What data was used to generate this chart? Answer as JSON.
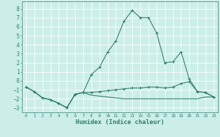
{
  "xlabel": "Humidex (Indice chaleur)",
  "background_color": "#cceee8",
  "grid_color": "#ffffff",
  "line_color": "#2e7d6e",
  "xlim": [
    -0.5,
    23.5
  ],
  "ylim": [
    -3.5,
    8.8
  ],
  "yticks": [
    -3,
    -2,
    -1,
    0,
    1,
    2,
    3,
    4,
    5,
    6,
    7,
    8
  ],
  "xticks": [
    0,
    1,
    2,
    3,
    4,
    5,
    6,
    7,
    8,
    9,
    10,
    11,
    12,
    13,
    14,
    15,
    16,
    17,
    18,
    19,
    20,
    21,
    22,
    23
  ],
  "s1_x": [
    0,
    1,
    2,
    3,
    4,
    5,
    6,
    7,
    8,
    9,
    10,
    11,
    12,
    13,
    14,
    15,
    16,
    17,
    18,
    19,
    20,
    21,
    22,
    23
  ],
  "s1_y": [
    -0.7,
    -1.2,
    -1.9,
    -2.1,
    -2.5,
    -3.0,
    -1.5,
    -1.3,
    0.7,
    1.5,
    3.2,
    4.4,
    6.6,
    7.8,
    7.0,
    7.0,
    5.3,
    2.0,
    2.1,
    3.2,
    0.2,
    -1.2,
    -1.3,
    -1.8
  ],
  "s2_x": [
    0,
    1,
    2,
    3,
    4,
    5,
    6,
    7,
    8,
    9,
    10,
    11,
    12,
    13,
    14,
    15,
    16,
    17,
    18,
    19,
    20,
    21,
    22,
    23
  ],
  "s2_y": [
    -0.7,
    -1.2,
    -1.9,
    -2.1,
    -2.5,
    -3.0,
    -1.5,
    -1.3,
    -1.3,
    -1.2,
    -1.1,
    -1.0,
    -0.9,
    -0.8,
    -0.8,
    -0.7,
    -0.7,
    -0.8,
    -0.7,
    -0.3,
    -0.1,
    -1.2,
    -1.3,
    -1.8
  ],
  "s3_x": [
    0,
    1,
    2,
    3,
    4,
    5,
    6,
    7,
    8,
    9,
    10,
    11,
    12,
    13,
    14,
    15,
    16,
    17,
    18,
    19,
    20,
    21,
    22,
    23
  ],
  "s3_y": [
    -0.7,
    -1.2,
    -1.9,
    -2.1,
    -2.5,
    -3.0,
    -1.5,
    -1.3,
    -1.6,
    -1.7,
    -1.8,
    -1.9,
    -2.0,
    -2.0,
    -2.0,
    -2.0,
    -2.0,
    -2.0,
    -2.0,
    -2.0,
    -2.0,
    -2.0,
    -1.8,
    -1.8
  ]
}
